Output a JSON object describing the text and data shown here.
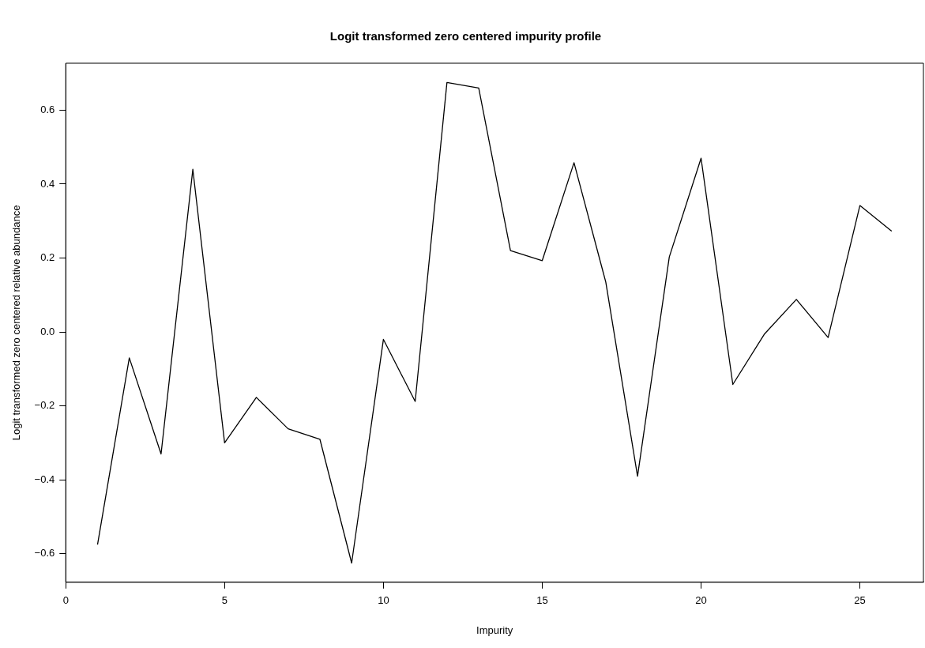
{
  "chart_data": {
    "type": "line",
    "title": "Logit transformed zero centered impurity profile",
    "xlabel": "Impurity",
    "ylabel": "Logit transformed zero centered relative abundance",
    "x": [
      1,
      2,
      3,
      4,
      5,
      6,
      7,
      8,
      9,
      10,
      11,
      12,
      13,
      14,
      15,
      16,
      17,
      18,
      19,
      20,
      21,
      22,
      23,
      24,
      25,
      26
    ],
    "series": [
      {
        "color": "#000000",
        "values": [
          -0.575,
          -0.07,
          -0.33,
          0.44,
          -0.3,
          -0.177,
          -0.262,
          -0.29,
          -0.625,
          -0.02,
          -0.188,
          0.675,
          0.66,
          0.22,
          0.193,
          0.458,
          0.135,
          -0.39,
          0.203,
          0.47,
          -0.142,
          -0.005,
          0.088,
          -0.015,
          0.342,
          0.273
        ]
      }
    ],
    "xlim": [
      0,
      27
    ],
    "xticks": [
      0,
      5,
      10,
      15,
      20,
      25
    ],
    "ylim": [
      -0.677,
      0.727
    ],
    "yticks": [
      {
        "value": -0.6,
        "label": "−0.6"
      },
      {
        "value": -0.4,
        "label": "−0.4"
      },
      {
        "value": -0.2,
        "label": "−0.2"
      },
      {
        "value": 0,
        "label": "0.0"
      },
      {
        "value": 0.2,
        "label": "0.2"
      },
      {
        "value": 0.4,
        "label": "0.4"
      },
      {
        "value": 0.6,
        "label": "0.6"
      }
    ],
    "grid": false,
    "legend": false,
    "marker": "none",
    "line_style": "solid"
  }
}
